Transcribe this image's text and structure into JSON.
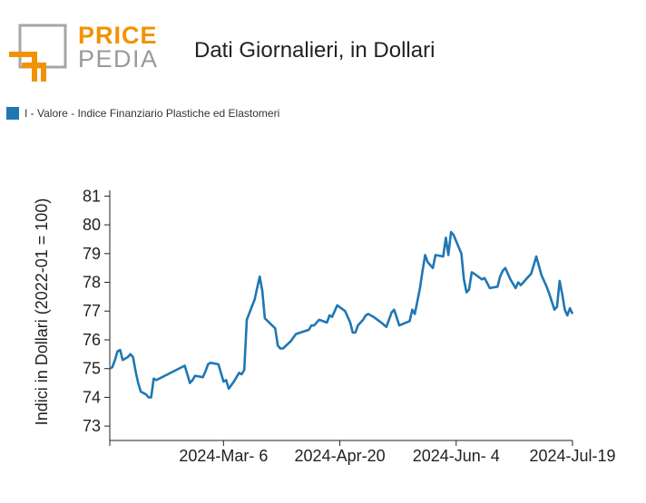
{
  "logo": {
    "line1": "PRICE",
    "line2": "PEDIA",
    "orange": "#f39200",
    "gray": "#9a9a9a"
  },
  "header": {
    "title": "Dati Giornalieri, in Dollari"
  },
  "legend": {
    "label": "I - Valore - Indice Finanziario Plastiche ed Elastomeri",
    "color": "#1f77b4"
  },
  "chart_data": {
    "type": "line",
    "ylabel": "Indici in Dollari (2022-01 = 100)",
    "ylim": [
      72.5,
      81.2
    ],
    "yticks": [
      73,
      74,
      75,
      76,
      77,
      78,
      79,
      80,
      81
    ],
    "xlim": [
      "2024-01-22",
      "2024-07-19"
    ],
    "xticks": [
      {
        "date": "2024-01-22",
        "label": ""
      },
      {
        "date": "2024-03-06",
        "label": "2024-Mar- 6"
      },
      {
        "date": "2024-04-20",
        "label": "2024-Apr-20"
      },
      {
        "date": "2024-06-04",
        "label": "2024-Jun- 4"
      },
      {
        "date": "2024-07-19",
        "label": "2024-Jul-19"
      }
    ],
    "series": [
      {
        "color": "#1f77b4",
        "points": [
          [
            "2024-01-22",
            75.0
          ],
          [
            "2024-01-23",
            75.05
          ],
          [
            "2024-01-24",
            75.3
          ],
          [
            "2024-01-25",
            75.6
          ],
          [
            "2024-01-26",
            75.65
          ],
          [
            "2024-01-27",
            75.3
          ],
          [
            "2024-01-29",
            75.4
          ],
          [
            "2024-01-30",
            75.5
          ],
          [
            "2024-01-31",
            75.4
          ],
          [
            "2024-02-01",
            74.9
          ],
          [
            "2024-02-02",
            74.5
          ],
          [
            "2024-02-03",
            74.2
          ],
          [
            "2024-02-05",
            74.1
          ],
          [
            "2024-02-06",
            74.0
          ],
          [
            "2024-02-07",
            74.0
          ],
          [
            "2024-02-08",
            74.65
          ],
          [
            "2024-02-09",
            74.6
          ],
          [
            "2024-02-20",
            75.1
          ],
          [
            "2024-02-21",
            74.8
          ],
          [
            "2024-02-22",
            74.5
          ],
          [
            "2024-02-23",
            74.6
          ],
          [
            "2024-02-24",
            74.75
          ],
          [
            "2024-02-27",
            74.7
          ],
          [
            "2024-02-28",
            74.9
          ],
          [
            "2024-02-29",
            75.15
          ],
          [
            "2024-03-01",
            75.2
          ],
          [
            "2024-03-04",
            75.15
          ],
          [
            "2024-03-05",
            74.85
          ],
          [
            "2024-03-06",
            74.55
          ],
          [
            "2024-03-07",
            74.6
          ],
          [
            "2024-03-08",
            74.3
          ],
          [
            "2024-03-10",
            74.55
          ],
          [
            "2024-03-12",
            74.85
          ],
          [
            "2024-03-13",
            74.8
          ],
          [
            "2024-03-14",
            74.95
          ],
          [
            "2024-03-15",
            76.7
          ],
          [
            "2024-03-18",
            77.4
          ],
          [
            "2024-03-19",
            77.8
          ],
          [
            "2024-03-20",
            78.2
          ],
          [
            "2024-03-21",
            77.7
          ],
          [
            "2024-03-22",
            76.75
          ],
          [
            "2024-03-26",
            76.4
          ],
          [
            "2024-03-27",
            75.8
          ],
          [
            "2024-03-28",
            75.7
          ],
          [
            "2024-03-29",
            75.7
          ],
          [
            "2024-04-01",
            75.95
          ],
          [
            "2024-04-03",
            76.2
          ],
          [
            "2024-04-08",
            76.35
          ],
          [
            "2024-04-09",
            76.5
          ],
          [
            "2024-04-10",
            76.5
          ],
          [
            "2024-04-12",
            76.7
          ],
          [
            "2024-04-15",
            76.6
          ],
          [
            "2024-04-16",
            76.85
          ],
          [
            "2024-04-17",
            76.8
          ],
          [
            "2024-04-18",
            77.0
          ],
          [
            "2024-04-19",
            77.2
          ],
          [
            "2024-04-22",
            77.0
          ],
          [
            "2024-04-24",
            76.6
          ],
          [
            "2024-04-25",
            76.25
          ],
          [
            "2024-04-26",
            76.25
          ],
          [
            "2024-04-27",
            76.5
          ],
          [
            "2024-04-29",
            76.7
          ],
          [
            "2024-04-30",
            76.85
          ],
          [
            "2024-05-01",
            76.9
          ],
          [
            "2024-05-03",
            76.8
          ],
          [
            "2024-05-06",
            76.6
          ],
          [
            "2024-05-08",
            76.45
          ],
          [
            "2024-05-10",
            76.95
          ],
          [
            "2024-05-11",
            77.05
          ],
          [
            "2024-05-13",
            76.5
          ],
          [
            "2024-05-17",
            76.65
          ],
          [
            "2024-05-18",
            77.05
          ],
          [
            "2024-05-19",
            76.9
          ],
          [
            "2024-05-21",
            77.8
          ],
          [
            "2024-05-22",
            78.4
          ],
          [
            "2024-05-23",
            78.95
          ],
          [
            "2024-05-24",
            78.7
          ],
          [
            "2024-05-26",
            78.5
          ],
          [
            "2024-05-27",
            78.95
          ],
          [
            "2024-05-30",
            78.9
          ],
          [
            "2024-05-31",
            79.55
          ],
          [
            "2024-06-01",
            78.95
          ],
          [
            "2024-06-02",
            79.75
          ],
          [
            "2024-06-03",
            79.65
          ],
          [
            "2024-06-06",
            79.0
          ],
          [
            "2024-06-07",
            78.1
          ],
          [
            "2024-06-08",
            77.65
          ],
          [
            "2024-06-09",
            77.75
          ],
          [
            "2024-06-10",
            78.35
          ],
          [
            "2024-06-11",
            78.3
          ],
          [
            "2024-06-14",
            78.1
          ],
          [
            "2024-06-15",
            78.15
          ],
          [
            "2024-06-17",
            77.8
          ],
          [
            "2024-06-20",
            77.85
          ],
          [
            "2024-06-21",
            78.2
          ],
          [
            "2024-06-22",
            78.4
          ],
          [
            "2024-06-23",
            78.5
          ],
          [
            "2024-06-25",
            78.1
          ],
          [
            "2024-06-27",
            77.8
          ],
          [
            "2024-06-28",
            78.0
          ],
          [
            "2024-06-29",
            77.9
          ],
          [
            "2024-07-01",
            78.1
          ],
          [
            "2024-07-03",
            78.3
          ],
          [
            "2024-07-04",
            78.6
          ],
          [
            "2024-07-05",
            78.9
          ],
          [
            "2024-07-07",
            78.25
          ],
          [
            "2024-07-09",
            77.85
          ],
          [
            "2024-07-10",
            77.6
          ],
          [
            "2024-07-12",
            77.05
          ],
          [
            "2024-07-13",
            77.15
          ],
          [
            "2024-07-14",
            78.05
          ],
          [
            "2024-07-15",
            77.6
          ],
          [
            "2024-07-16",
            77.05
          ],
          [
            "2024-07-17",
            76.85
          ],
          [
            "2024-07-18",
            77.1
          ],
          [
            "2024-07-19",
            76.9
          ]
        ]
      }
    ]
  }
}
